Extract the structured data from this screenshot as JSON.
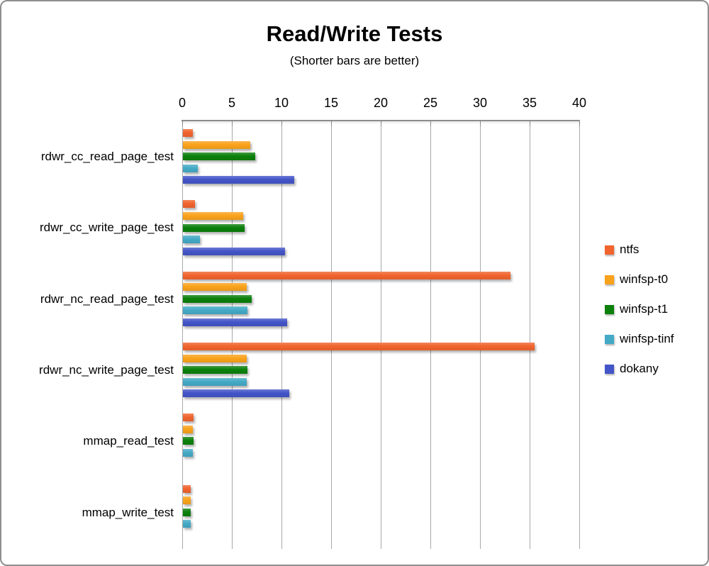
{
  "title": "Read/Write Tests",
  "subtitle": "(Shorter bars are better)",
  "chart_data": {
    "type": "bar",
    "orientation": "horizontal",
    "title": "Read/Write Tests",
    "subtitle": "(Shorter bars are better)",
    "xlabel": "",
    "ylabel": "",
    "xlim": [
      0,
      40
    ],
    "xticks": [
      0,
      5,
      10,
      15,
      20,
      25,
      30,
      35,
      40
    ],
    "grid": true,
    "legend_position": "right",
    "categories": [
      "rdwr_cc_read_page_test",
      "rdwr_cc_write_page_test",
      "rdwr_nc_read_page_test",
      "rdwr_nc_write_page_test",
      "mmap_read_test",
      "mmap_write_test"
    ],
    "series": [
      {
        "name": "ntfs",
        "color": "#f1642e",
        "values": [
          1.0,
          1.2,
          33.0,
          35.4,
          1.1,
          0.8
        ]
      },
      {
        "name": "winfsp-t0",
        "color": "#f9a21b",
        "values": [
          6.8,
          6.1,
          6.4,
          6.4,
          1.0,
          0.8
        ]
      },
      {
        "name": "winfsp-t1",
        "color": "#0b800b",
        "values": [
          7.3,
          6.2,
          6.9,
          6.5,
          1.1,
          0.8
        ]
      },
      {
        "name": "winfsp-tinf",
        "color": "#44aac6",
        "values": [
          1.5,
          1.7,
          6.5,
          6.4,
          1.0,
          0.8
        ]
      },
      {
        "name": "dokany",
        "color": "#4355c8",
        "values": [
          11.2,
          10.3,
          10.5,
          10.7,
          0,
          0
        ]
      }
    ]
  }
}
